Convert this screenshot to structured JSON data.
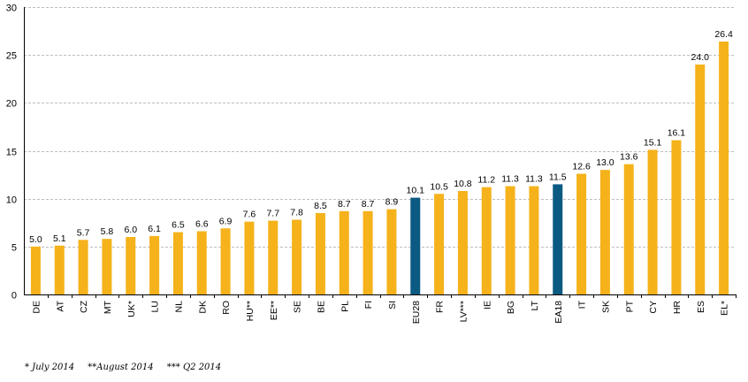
{
  "chart_data": {
    "type": "bar",
    "title": "",
    "xlabel": "",
    "ylabel": "",
    "ylim": [
      0,
      30
    ],
    "yticks": [
      "0",
      "5",
      "10",
      "15",
      "20",
      "25",
      "30"
    ],
    "grid": true,
    "categories": [
      "DE",
      "AT",
      "CZ",
      "MT",
      "UK*",
      "LU",
      "NL",
      "DK",
      "RO",
      "HU**",
      "EE**",
      "SE",
      "BE",
      "PL",
      "FI",
      "SI",
      "EU28",
      "FR",
      "LV***",
      "IE",
      "BG",
      "LT",
      "EA18",
      "IT",
      "SK",
      "PT",
      "CY",
      "HR",
      "ES",
      "EL*"
    ],
    "values": [
      5.0,
      5.1,
      5.7,
      5.8,
      6.0,
      6.1,
      6.5,
      6.6,
      6.9,
      7.6,
      7.7,
      7.8,
      8.5,
      8.7,
      8.7,
      8.9,
      10.1,
      10.5,
      10.8,
      11.2,
      11.3,
      11.3,
      11.5,
      12.6,
      13.0,
      13.6,
      15.1,
      16.1,
      24.0,
      26.4
    ],
    "value_labels": [
      "5.0",
      "5.1",
      "5.7",
      "5.8",
      "6.0",
      "6.1",
      "6.5",
      "6.6",
      "6.9",
      "7.6",
      "7.7",
      "7.8",
      "8.5",
      "8.7",
      "8.7",
      "8.9",
      "10.1",
      "10.5",
      "10.8",
      "11.2",
      "11.3",
      "11.3",
      "11.5",
      "12.6",
      "13.0",
      "13.6",
      "15.1",
      "16.1",
      "24.0",
      "26.4"
    ],
    "highlight": [
      "EU28",
      "EA18"
    ],
    "colors": {
      "bar": "#F5B21B",
      "highlight": "#0B5A82",
      "grid": "#BDBDBD",
      "axis": "#000000"
    }
  },
  "footnotes": {
    "note1": "*  July 2014",
    "note2": "**August 2014",
    "note3": "*** Q2 2014"
  }
}
